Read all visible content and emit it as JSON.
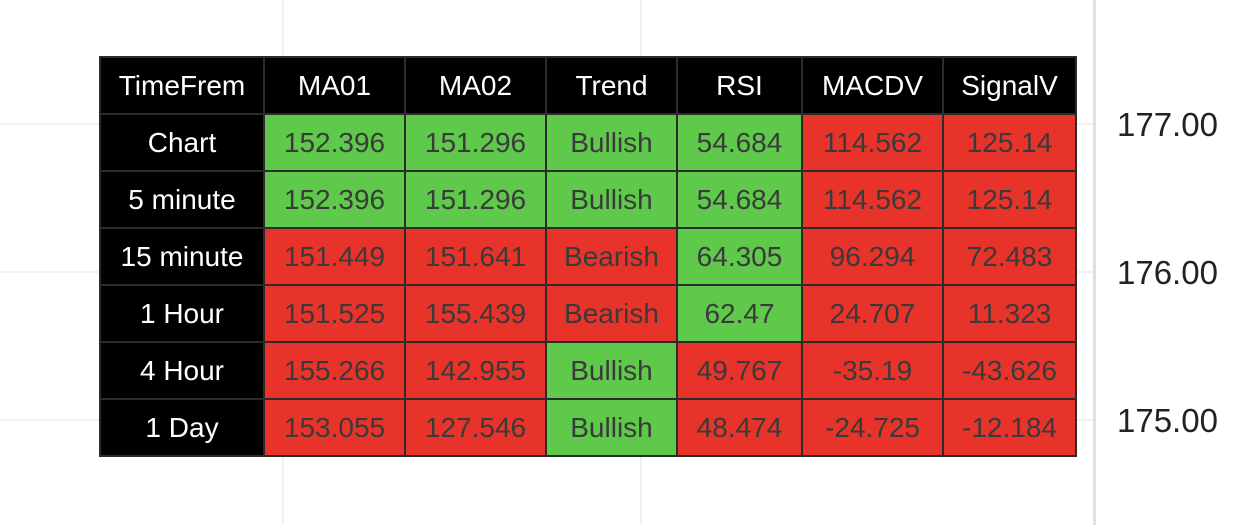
{
  "colors": {
    "bullish": "#5ec94a",
    "bearish": "#e8332a",
    "header": "#000000"
  },
  "price_axis": [
    "177.00",
    "176.00",
    "175.00"
  ],
  "table": {
    "headers": [
      "TimeFrem",
      "MA01",
      "MA02",
      "Trend",
      "RSI",
      "MACDV",
      "SignalV"
    ],
    "rows": [
      {
        "label": "Chart",
        "cells": [
          [
            "152.396",
            "g"
          ],
          [
            "151.296",
            "g"
          ],
          [
            "Bullish",
            "g"
          ],
          [
            "54.684",
            "g"
          ],
          [
            "114.562",
            "r"
          ],
          [
            "125.14",
            "r"
          ]
        ]
      },
      {
        "label": "5 minute",
        "cells": [
          [
            "152.396",
            "g"
          ],
          [
            "151.296",
            "g"
          ],
          [
            "Bullish",
            "g"
          ],
          [
            "54.684",
            "g"
          ],
          [
            "114.562",
            "r"
          ],
          [
            "125.14",
            "r"
          ]
        ]
      },
      {
        "label": "15 minute",
        "cells": [
          [
            "151.449",
            "r"
          ],
          [
            "151.641",
            "r"
          ],
          [
            "Bearish",
            "r"
          ],
          [
            "64.305",
            "g"
          ],
          [
            "96.294",
            "r"
          ],
          [
            "72.483",
            "r"
          ]
        ]
      },
      {
        "label": "1 Hour",
        "cells": [
          [
            "151.525",
            "r"
          ],
          [
            "155.439",
            "r"
          ],
          [
            "Bearish",
            "r"
          ],
          [
            "62.47",
            "g"
          ],
          [
            "24.707",
            "r"
          ],
          [
            "11.323",
            "r"
          ]
        ]
      },
      {
        "label": "4 Hour",
        "cells": [
          [
            "155.266",
            "r"
          ],
          [
            "142.955",
            "r"
          ],
          [
            "Bullish",
            "g"
          ],
          [
            "49.767",
            "r"
          ],
          [
            "-35.19",
            "r"
          ],
          [
            "-43.626",
            "r"
          ]
        ]
      },
      {
        "label": "1 Day",
        "cells": [
          [
            "153.055",
            "r"
          ],
          [
            "127.546",
            "r"
          ],
          [
            "Bullish",
            "g"
          ],
          [
            "48.474",
            "r"
          ],
          [
            "-24.725",
            "r"
          ],
          [
            "-12.184",
            "r"
          ]
        ]
      }
    ]
  }
}
